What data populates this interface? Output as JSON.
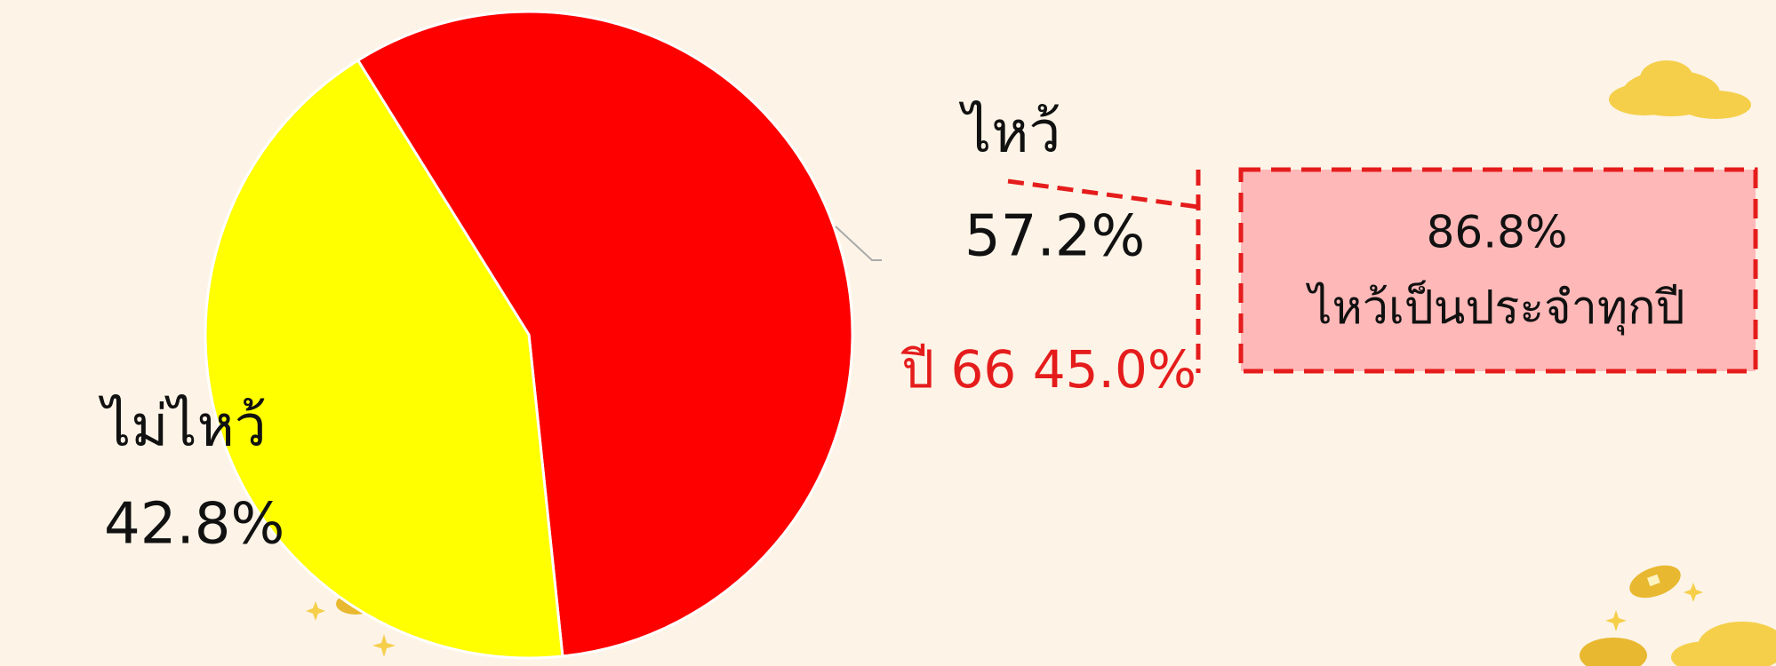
{
  "chart_data": {
    "type": "pie",
    "categories": [
      "ไหว้",
      "ไม่ไหว้"
    ],
    "values": [
      57.2,
      42.8
    ],
    "value_labels": [
      "57.2%",
      "42.8%"
    ],
    "colors": [
      "#ff0000",
      "#ffff00"
    ],
    "annotations": [
      "ปี 66 45.0%"
    ],
    "callout": {
      "value": "86.8%",
      "text": "ไหว้เป็นประจำทุกปี"
    }
  }
}
